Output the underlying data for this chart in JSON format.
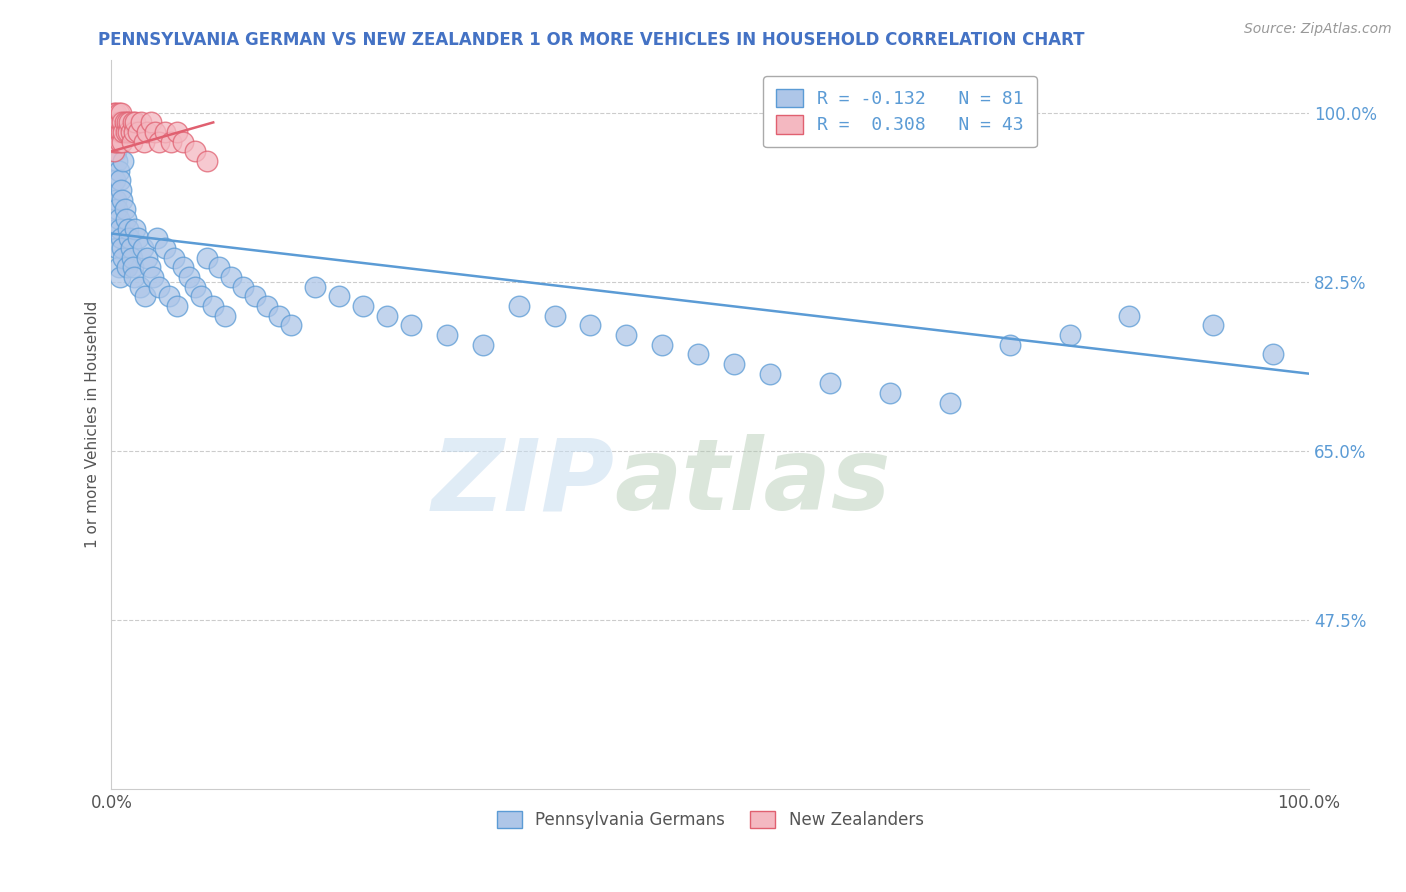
{
  "title": "PENNSYLVANIA GERMAN VS NEW ZEALANDER 1 OR MORE VEHICLES IN HOUSEHOLD CORRELATION CHART",
  "source_text": "Source: ZipAtlas.com",
  "ylabel": "1 or more Vehicles in Household",
  "legend_label_blue": "Pennsylvania Germans",
  "legend_label_pink": "New Zealanders",
  "R_blue": -0.132,
  "N_blue": 81,
  "R_pink": 0.308,
  "N_pink": 43,
  "blue_color": "#aec6e8",
  "pink_color": "#f4b8c1",
  "blue_line_color": "#5b9bd5",
  "pink_line_color": "#e06070",
  "title_color": "#4472c4",
  "watermark_zip": "ZIP",
  "watermark_atlas": "atlas",
  "ytick_labels": [
    "100.0%",
    "82.5%",
    "65.0%",
    "47.5%"
  ],
  "ytick_values": [
    1.0,
    0.825,
    0.65,
    0.475
  ],
  "xlim": [
    0.0,
    1.0
  ],
  "ylim": [
    0.3,
    1.055
  ],
  "blue_x": [
    0.002,
    0.003,
    0.003,
    0.004,
    0.004,
    0.004,
    0.005,
    0.005,
    0.005,
    0.006,
    0.006,
    0.006,
    0.007,
    0.007,
    0.007,
    0.008,
    0.008,
    0.009,
    0.009,
    0.01,
    0.01,
    0.011,
    0.012,
    0.013,
    0.014,
    0.015,
    0.016,
    0.017,
    0.018,
    0.019,
    0.02,
    0.022,
    0.024,
    0.026,
    0.028,
    0.03,
    0.032,
    0.035,
    0.038,
    0.04,
    0.045,
    0.048,
    0.052,
    0.055,
    0.06,
    0.065,
    0.07,
    0.075,
    0.08,
    0.085,
    0.09,
    0.095,
    0.1,
    0.11,
    0.12,
    0.13,
    0.14,
    0.15,
    0.17,
    0.19,
    0.21,
    0.23,
    0.25,
    0.28,
    0.31,
    0.34,
    0.37,
    0.4,
    0.43,
    0.46,
    0.49,
    0.52,
    0.55,
    0.6,
    0.65,
    0.7,
    0.75,
    0.8,
    0.85,
    0.92,
    0.97
  ],
  "blue_y": [
    0.97,
    0.99,
    0.93,
    0.96,
    0.91,
    0.88,
    0.95,
    0.9,
    0.86,
    0.94,
    0.89,
    0.84,
    0.93,
    0.88,
    0.83,
    0.92,
    0.87,
    0.91,
    0.86,
    0.95,
    0.85,
    0.9,
    0.89,
    0.84,
    0.88,
    0.87,
    0.86,
    0.85,
    0.84,
    0.83,
    0.88,
    0.87,
    0.82,
    0.86,
    0.81,
    0.85,
    0.84,
    0.83,
    0.87,
    0.82,
    0.86,
    0.81,
    0.85,
    0.8,
    0.84,
    0.83,
    0.82,
    0.81,
    0.85,
    0.8,
    0.84,
    0.79,
    0.83,
    0.82,
    0.81,
    0.8,
    0.79,
    0.78,
    0.82,
    0.81,
    0.8,
    0.79,
    0.78,
    0.77,
    0.76,
    0.8,
    0.79,
    0.78,
    0.77,
    0.76,
    0.75,
    0.74,
    0.73,
    0.72,
    0.71,
    0.7,
    0.76,
    0.77,
    0.79,
    0.78,
    0.75
  ],
  "pink_x": [
    0.001,
    0.001,
    0.002,
    0.002,
    0.002,
    0.003,
    0.003,
    0.004,
    0.004,
    0.005,
    0.005,
    0.006,
    0.006,
    0.007,
    0.007,
    0.008,
    0.008,
    0.009,
    0.009,
    0.01,
    0.011,
    0.012,
    0.013,
    0.014,
    0.015,
    0.016,
    0.017,
    0.018,
    0.019,
    0.02,
    0.022,
    0.025,
    0.027,
    0.03,
    0.033,
    0.036,
    0.04,
    0.045,
    0.05,
    0.055,
    0.06,
    0.07,
    0.08
  ],
  "pink_y": [
    0.99,
    0.97,
    1.0,
    0.98,
    0.96,
    0.99,
    0.97,
    1.0,
    0.98,
    0.99,
    0.97,
    1.0,
    0.98,
    0.99,
    0.97,
    1.0,
    0.98,
    0.99,
    0.97,
    0.98,
    0.99,
    0.98,
    0.99,
    0.98,
    0.99,
    0.98,
    0.97,
    0.99,
    0.98,
    0.99,
    0.98,
    0.99,
    0.97,
    0.98,
    0.99,
    0.98,
    0.97,
    0.98,
    0.97,
    0.98,
    0.97,
    0.96,
    0.95
  ],
  "blue_line_x": [
    0.0,
    1.0
  ],
  "blue_line_y": [
    0.875,
    0.73
  ],
  "pink_line_x": [
    0.0,
    0.085
  ],
  "pink_line_y": [
    0.96,
    0.99
  ]
}
